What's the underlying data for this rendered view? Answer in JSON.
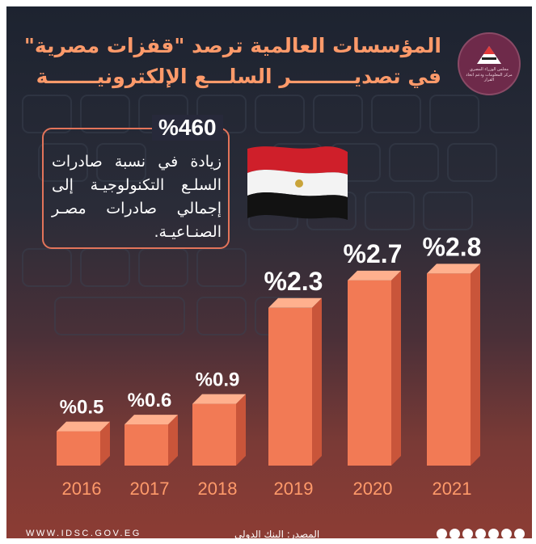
{
  "header": {
    "title_line1": "المؤسسات العالمية ترصد \"قفزات مصرية\"",
    "title_line2": "في تصديـــــــــر السلـــع الإلكترونيـــــــة",
    "logo_text": "مجلس الوزراء المصري مركز المعلومات ودعم اتخاذ القرار"
  },
  "callout": {
    "percent": "%460",
    "text": "زيادة في نسبة صادرات السلـع التكنولوجيـة إلى إجمالي صادرات مصـر الصنـاعيـة."
  },
  "chart_data": {
    "type": "bar",
    "categories": [
      "2016",
      "2017",
      "2018",
      "2019",
      "2020",
      "2021"
    ],
    "values": [
      0.5,
      0.6,
      0.9,
      2.3,
      2.7,
      2.8
    ],
    "value_labels": [
      "%0.5",
      "%0.6",
      "%0.9",
      "%2.3",
      "%2.7",
      "%2.8"
    ],
    "title": "",
    "xlabel": "",
    "ylabel": "",
    "ylim": [
      0,
      3
    ],
    "grid": false,
    "bar_color": "#f27a55"
  },
  "footer": {
    "source": "المصدر: البنك الدولي",
    "website": "WWW.IDSC.GOV.EG",
    "social_icons": [
      "facebook-icon",
      "twitter-icon",
      "instagram-icon",
      "linkedin-icon",
      "youtube-icon",
      "flickr-icon",
      "telegram-icon"
    ]
  },
  "colors": {
    "accent": "#ff9a6a",
    "bar_front": "#f27a55",
    "callout_border": "#e3745a",
    "logo": "#6e2a4a"
  }
}
